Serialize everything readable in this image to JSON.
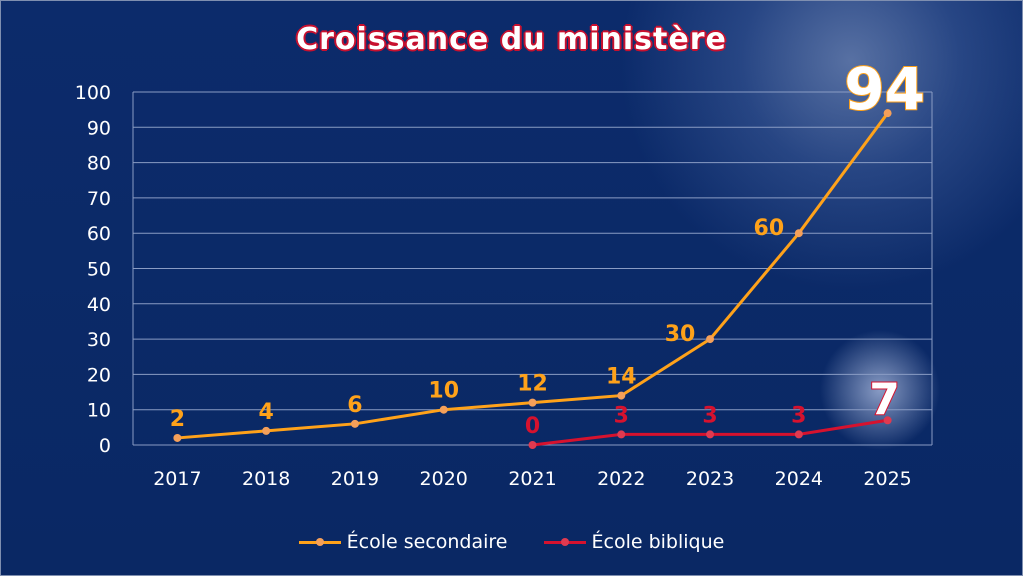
{
  "chart_data": {
    "type": "line",
    "title": "Croissance du ministère",
    "categories": [
      "2017",
      "2018",
      "2019",
      "2020",
      "2021",
      "2022",
      "2023",
      "2024",
      "2025"
    ],
    "ylim": [
      0,
      100
    ],
    "yticks": [
      0,
      10,
      20,
      30,
      40,
      50,
      60,
      70,
      80,
      90,
      100
    ],
    "grid": true,
    "legend_position": "bottom",
    "series": [
      {
        "name": "École secondaire",
        "color": "#ffa21a",
        "values": [
          2,
          4,
          6,
          10,
          12,
          14,
          30,
          60,
          94
        ]
      },
      {
        "name": "École biblique",
        "color": "#d6122e",
        "values": [
          null,
          null,
          null,
          null,
          0,
          3,
          3,
          3,
          7
        ]
      }
    ],
    "highlighted_labels": [
      "94",
      "7"
    ]
  }
}
